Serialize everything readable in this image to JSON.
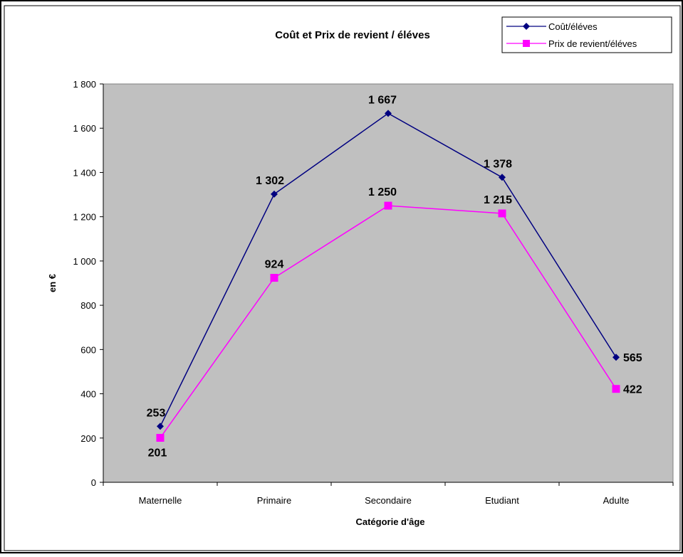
{
  "chart_data": {
    "type": "line",
    "title": "Coût et Prix de revient / éléves",
    "xlabel": "Catégorie d'âge",
    "ylabel": "en €",
    "categories": [
      "Maternelle",
      "Primaire",
      "Secondaire",
      "Etudiant",
      "Adulte"
    ],
    "ylim": [
      0,
      1800
    ],
    "yticks": [
      0,
      200,
      400,
      600,
      800,
      1000,
      1200,
      1400,
      1600,
      1800
    ],
    "ytick_labels": [
      "0",
      "200",
      "400",
      "600",
      "800",
      "1 000",
      "1 200",
      "1 400",
      "1 600",
      "1 800"
    ],
    "grid": false,
    "legend_position": "top-right",
    "plot_background": "#c0c0c0",
    "series": [
      {
        "name": "Coût/éléves",
        "color": "#000080",
        "marker": "diamond",
        "values": [
          253,
          1302,
          1667,
          1378,
          565
        ],
        "labels": [
          "253",
          "1 302",
          "1 667",
          "1 378",
          "565"
        ]
      },
      {
        "name": "Prix de revient/éléves",
        "color": "#ff00ff",
        "marker": "square",
        "values": [
          201,
          924,
          1250,
          1215,
          422
        ],
        "labels": [
          "201",
          "924",
          "1 250",
          "1 215",
          "422"
        ]
      }
    ]
  }
}
